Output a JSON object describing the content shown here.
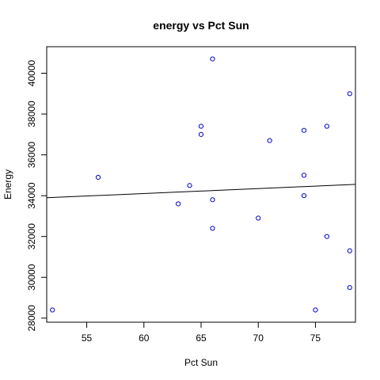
{
  "chart_data": {
    "type": "scatter",
    "title": "energy vs Pct Sun",
    "xlabel": "Pct Sun",
    "ylabel": "Energy",
    "xlim": [
      51.5,
      78.5
    ],
    "ylim": [
      27800,
      41300
    ],
    "x_ticks": [
      55,
      60,
      65,
      70,
      75
    ],
    "x_tick_labels": [
      "55",
      "60",
      "65",
      "70",
      "75"
    ],
    "y_ticks": [
      28000,
      30000,
      32000,
      34000,
      36000,
      38000,
      40000
    ],
    "y_tick_labels": [
      "28000",
      "30000",
      "32000",
      "34000",
      "36000",
      "38000",
      "40000"
    ],
    "points": [
      {
        "x": 52,
        "y": 28400
      },
      {
        "x": 56,
        "y": 34900
      },
      {
        "x": 63,
        "y": 33600
      },
      {
        "x": 64,
        "y": 34500
      },
      {
        "x": 65,
        "y": 37400
      },
      {
        "x": 65,
        "y": 37000
      },
      {
        "x": 66,
        "y": 40700
      },
      {
        "x": 66,
        "y": 33800
      },
      {
        "x": 66,
        "y": 32400
      },
      {
        "x": 70,
        "y": 32900
      },
      {
        "x": 71,
        "y": 36700
      },
      {
        "x": 74,
        "y": 37200
      },
      {
        "x": 74,
        "y": 35000
      },
      {
        "x": 74,
        "y": 34000
      },
      {
        "x": 75,
        "y": 28400
      },
      {
        "x": 76,
        "y": 37400
      },
      {
        "x": 76,
        "y": 32000
      },
      {
        "x": 78,
        "y": 39000
      },
      {
        "x": 78,
        "y": 31300
      },
      {
        "x": 78,
        "y": 29500
      }
    ],
    "fit_line": {
      "intercept": 32650,
      "slope": 24.25
    },
    "point_color": "#0000cc",
    "line_color": "#000000",
    "grid": false,
    "legend": "none"
  }
}
